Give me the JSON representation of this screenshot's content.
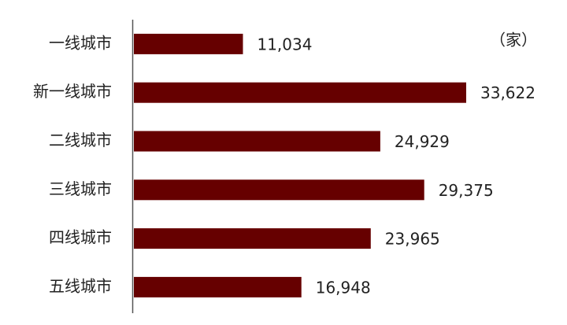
{
  "chart_data": {
    "type": "bar",
    "orientation": "horizontal",
    "unit_label": "（家）",
    "categories": [
      "一线城市",
      "新一线城市",
      "二线城市",
      "三线城市",
      "四线城市",
      "五线城市"
    ],
    "values": [
      11034,
      33622,
      24929,
      29375,
      23965,
      16948
    ],
    "value_labels": [
      "11,034",
      "33,622",
      "24,929",
      "29,375",
      "23,965",
      "16,948"
    ],
    "color": "#660000"
  }
}
